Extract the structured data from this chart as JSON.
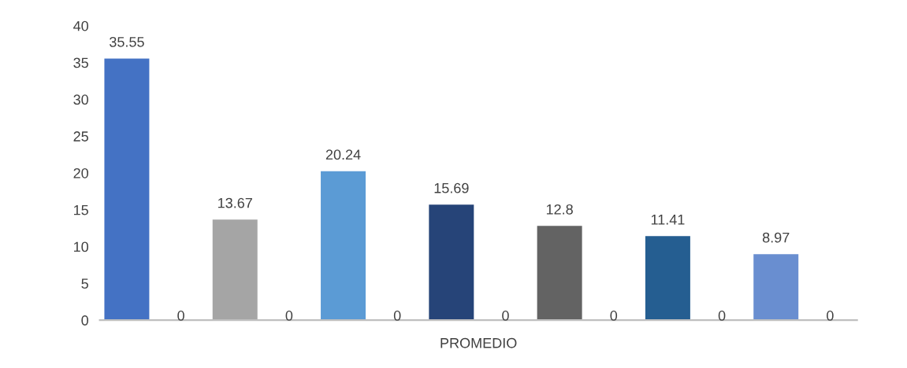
{
  "chart_data": {
    "type": "bar",
    "xlabel": "PROMEDIO",
    "categories": [
      null,
      null,
      null,
      null,
      null,
      null,
      null,
      null,
      null,
      null,
      null,
      null,
      null,
      null
    ],
    "values": [
      35.55,
      0,
      13.67,
      0,
      20.24,
      0,
      15.69,
      0,
      12.8,
      0,
      11.41,
      0,
      8.97,
      0
    ],
    "colors": [
      "#4472c4",
      "#bfbfbf",
      "#a5a5a5",
      "#bfbfbf",
      "#5b9bd5",
      "#bfbfbf",
      "#264478",
      "#bfbfbf",
      "#636363",
      "#bfbfbf",
      "#255e91",
      "#bfbfbf",
      "#698ed0",
      "#bfbfbf"
    ],
    "ylim": [
      0,
      40
    ],
    "yticks": [
      0,
      5,
      10,
      15,
      20,
      25,
      30,
      35,
      40
    ],
    "grid": false,
    "legend": false,
    "data_labels": true
  }
}
